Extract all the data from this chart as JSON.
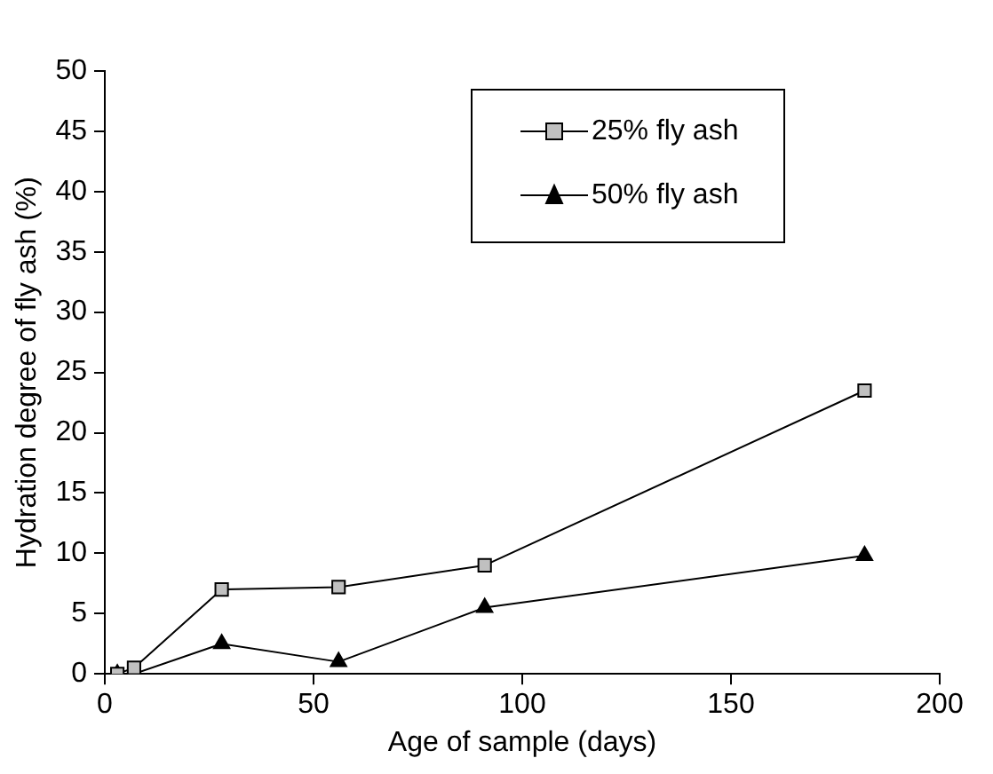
{
  "chart_data": {
    "type": "line",
    "xlabel": "Age of sample (days)",
    "ylabel": "Hydration degree of fly ash (%)",
    "x": [
      3,
      7,
      28,
      56,
      91,
      182
    ],
    "series": [
      {
        "name": "25% fly ash",
        "color": "#c0c0c0",
        "marker": "square",
        "values": [
          0,
          0.5,
          7,
          7.2,
          9,
          23.5
        ]
      },
      {
        "name": "50% fly ash",
        "color": "#000000",
        "marker": "triangle",
        "values": [
          0,
          0,
          2.5,
          1,
          5.5,
          9.8
        ]
      }
    ],
    "xlim": [
      0,
      200
    ],
    "xticks": [
      0,
      50,
      100,
      150,
      200
    ],
    "ylim": [
      0,
      50
    ],
    "yticks": [
      0,
      5,
      10,
      15,
      20,
      25,
      30,
      35,
      40,
      45,
      50
    ],
    "grid": false,
    "legend": "top right",
    "line_style": "solid"
  }
}
